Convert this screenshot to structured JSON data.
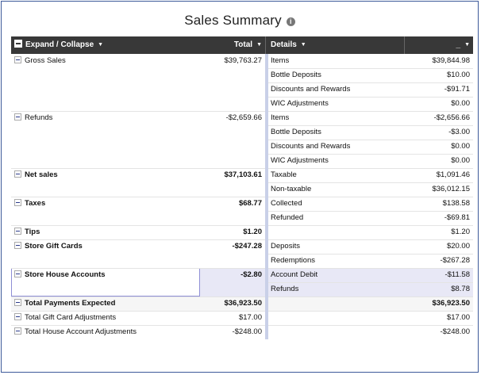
{
  "title": "Sales Summary",
  "info_icon": "info-icon",
  "header": {
    "expand_collapse": "Expand / Collapse",
    "total": "Total",
    "details": "Details",
    "last": "_"
  },
  "rows": [
    {
      "label": "Gross Sales",
      "total": "$39,763.27",
      "bold": false,
      "details": [
        {
          "name": "Items",
          "value": "$39,844.98"
        },
        {
          "name": "Bottle Deposits",
          "value": "$10.00"
        },
        {
          "name": "Discounts and Rewards",
          "value": "-$91.71"
        },
        {
          "name": "WIC Adjustments",
          "value": "$0.00"
        }
      ]
    },
    {
      "label": "Refunds",
      "total": "-$2,659.66",
      "bold": false,
      "details": [
        {
          "name": "Items",
          "value": "-$2,656.66"
        },
        {
          "name": "Bottle Deposits",
          "value": "-$3.00"
        },
        {
          "name": "Discounts and Rewards",
          "value": "$0.00"
        },
        {
          "name": "WIC Adjustments",
          "value": "$0.00"
        }
      ]
    },
    {
      "label": "Net sales",
      "total": "$37,103.61",
      "bold": true,
      "details": [
        {
          "name": "Taxable",
          "value": "$1,091.46"
        },
        {
          "name": "Non-taxable",
          "value": "$36,012.15"
        }
      ]
    },
    {
      "label": "Taxes",
      "total": "$68.77",
      "bold": true,
      "details": [
        {
          "name": "Collected",
          "value": "$138.58"
        },
        {
          "name": "Refunded",
          "value": "-$69.81"
        }
      ]
    },
    {
      "label": "Tips",
      "total": "$1.20",
      "bold": true,
      "details": [
        {
          "name": "",
          "value": "$1.20"
        }
      ]
    },
    {
      "label": "Store Gift Cards",
      "total": "-$247.28",
      "bold": true,
      "details": [
        {
          "name": "Deposits",
          "value": "$20.00"
        },
        {
          "name": "Redemptions",
          "value": "-$267.28"
        }
      ]
    },
    {
      "label": "Store House Accounts",
      "total": "-$2.80",
      "bold": true,
      "details": [
        {
          "name": "Account Debit",
          "value": "-$11.58"
        },
        {
          "name": "Refunds",
          "value": "$8.78"
        }
      ]
    },
    {
      "label": "Total Payments Expected",
      "total": "$36,923.50",
      "bold": true,
      "details": [
        {
          "name": "",
          "value": "$36,923.50"
        }
      ]
    },
    {
      "label": "Total Gift Card Adjustments",
      "total": "$17.00",
      "bold": false,
      "details": [
        {
          "name": "",
          "value": "$17.00"
        }
      ]
    },
    {
      "label": "Total House Account Adjustments",
      "total": "-$248.00",
      "bold": false,
      "details": [
        {
          "name": "",
          "value": "-$248.00"
        }
      ]
    }
  ]
}
